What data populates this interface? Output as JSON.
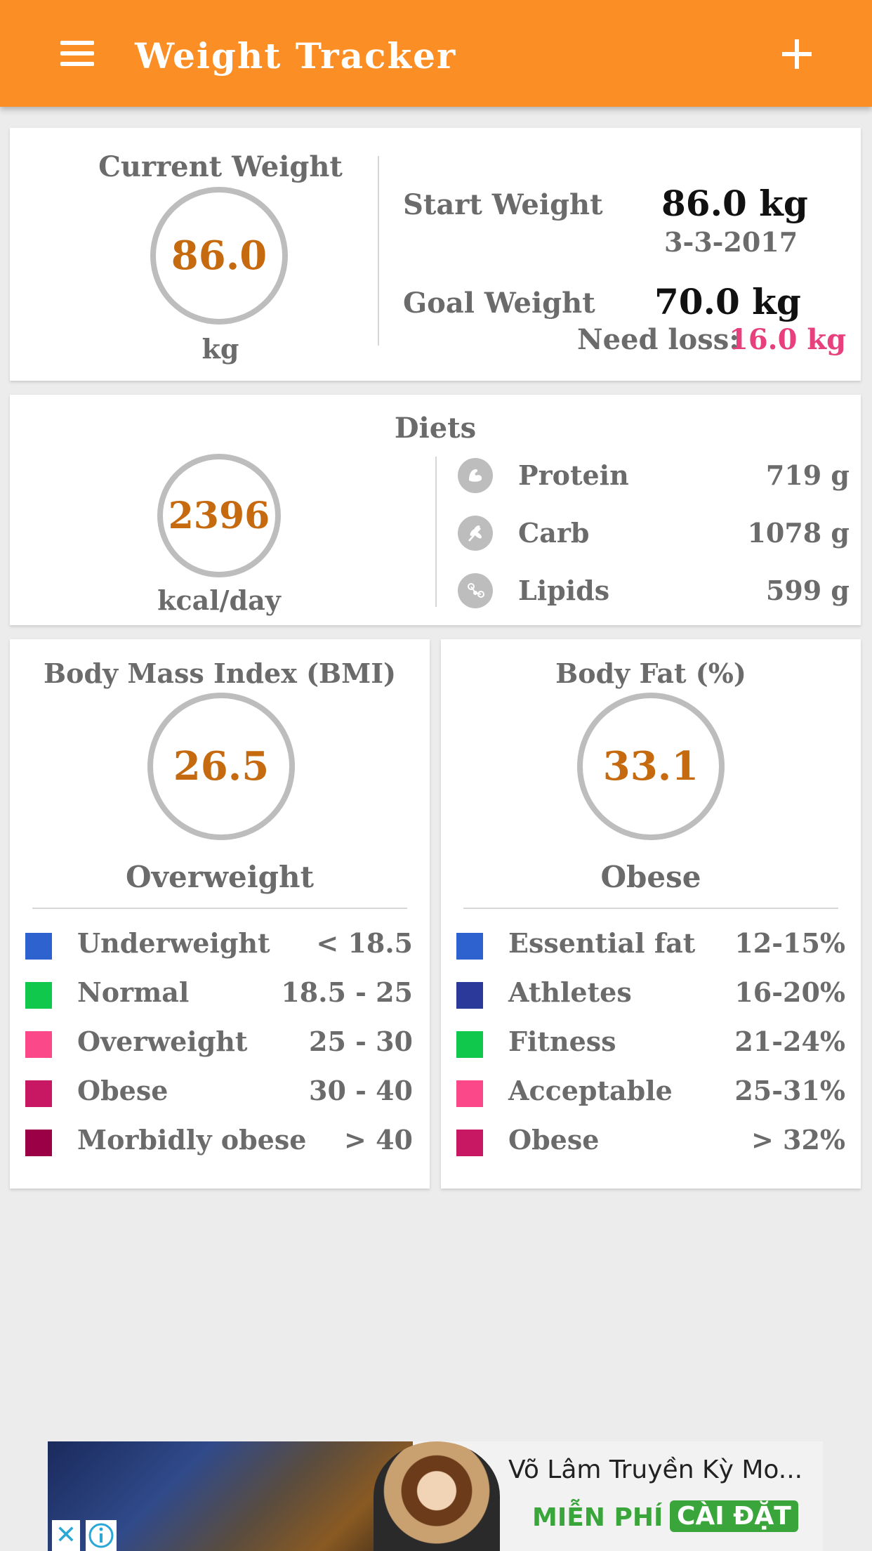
{
  "appbar": {
    "title": "Weight Tracker",
    "menu_icon": "hamburger-menu-icon",
    "add_icon": "plus-icon",
    "color": "#fb8f26"
  },
  "weight": {
    "current_label": "Current Weight",
    "current_value": "86.0",
    "current_unit": "kg",
    "start_label": "Start Weight",
    "start_value": "86.0  kg",
    "start_date": "3-3-2017",
    "goal_label": "Goal Weight",
    "goal_value": "70.0  kg",
    "need_loss_label": "Need loss:",
    "need_loss_value": "16.0  kg",
    "need_loss_color": "#e8407c"
  },
  "diets": {
    "title": "Diets",
    "calories": "2396",
    "calories_unit": "kcal/day",
    "items": [
      {
        "label": "Protein",
        "value": "719  g",
        "icon": "muscle-icon"
      },
      {
        "label": "Carb",
        "value": "1078  g",
        "icon": "wheat-icon"
      },
      {
        "label": "Lipids",
        "value": "599  g",
        "icon": "molecule-icon"
      }
    ]
  },
  "bmi": {
    "title": "Body Mass Index (BMI)",
    "value": "26.5",
    "status": "Overweight",
    "legend": [
      {
        "label": "Underweight",
        "range": "<  18.5",
        "color": "#2e62cf"
      },
      {
        "label": "Normal",
        "range": "18.5  -  25",
        "color": "#10c94c"
      },
      {
        "label": "Overweight",
        "range": "25  -  30",
        "color": "#fb4888"
      },
      {
        "label": "Obese",
        "range": "30  -  40",
        "color": "#c81763"
      },
      {
        "label": "Morbidly obese",
        "range": ">  40",
        "color": "#9b0046"
      }
    ]
  },
  "body_fat": {
    "title": "Body Fat (%)",
    "value": "33.1",
    "status": "Obese",
    "legend": [
      {
        "label": "Essential fat",
        "range": "12-15%",
        "color": "#2e62cf"
      },
      {
        "label": "Athletes",
        "range": "16-20%",
        "color": "#2b3a9a"
      },
      {
        "label": "Fitness",
        "range": "21-24%",
        "color": "#10c94c"
      },
      {
        "label": "Acceptable",
        "range": "25-31%",
        "color": "#fb4888"
      },
      {
        "label": "Obese",
        "range": ">  32%",
        "color": "#c81763"
      }
    ]
  },
  "ad": {
    "title": "Võ Lâm Truyền Kỳ Mo...",
    "free_label": "MIỄN PHÍ",
    "install_label": "CÀI ĐẶT",
    "close_icon": "close-icon",
    "info_icon": "info-icon"
  }
}
